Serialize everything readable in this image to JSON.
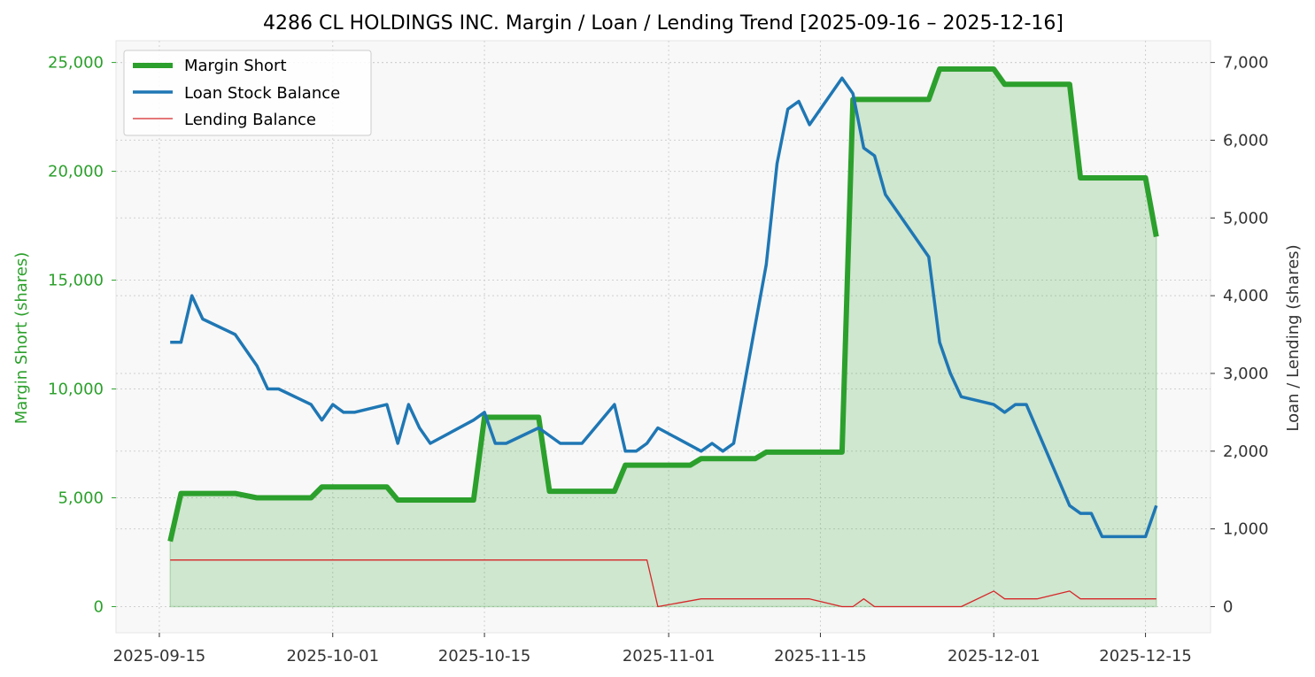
{
  "colors": {
    "margin": "#2ca02c",
    "loan": "#1f77b4",
    "lending": "#d62728",
    "fill": "#2ca02c",
    "plot_bg": "#f8f8f8",
    "grid": "#d0d0d0",
    "text": "#000000",
    "axis_text": "#333333"
  },
  "chart_data": {
    "type": "line",
    "title": "4286 CL HOLDINGS INC. Margin / Loan / Lending Trend [2025-09-16 – 2025-12-16]",
    "ylabel_left": "Margin Short (shares)",
    "ylabel_right": "Loan / Lending (shares)",
    "ylim_left": [
      -1200,
      26000
    ],
    "ylim_right": [
      -336,
      7280
    ],
    "xlim": [
      "2025-09-11",
      "2025-12-21"
    ],
    "yticks_left": [
      {
        "v": 0,
        "label": "0"
      },
      {
        "v": 5000,
        "label": "5,000"
      },
      {
        "v": 10000,
        "label": "10,000"
      },
      {
        "v": 15000,
        "label": "15,000"
      },
      {
        "v": 20000,
        "label": "20,000"
      },
      {
        "v": 25000,
        "label": "25,000"
      }
    ],
    "yticks_right": [
      {
        "v": 0,
        "label": "0"
      },
      {
        "v": 1000,
        "label": "1,000"
      },
      {
        "v": 2000,
        "label": "2,000"
      },
      {
        "v": 3000,
        "label": "3,000"
      },
      {
        "v": 4000,
        "label": "4,000"
      },
      {
        "v": 5000,
        "label": "5,000"
      },
      {
        "v": 6000,
        "label": "6,000"
      },
      {
        "v": 7000,
        "label": "7,000"
      }
    ],
    "xticks": [
      {
        "date": "2025-09-15",
        "label": "2025-09-15"
      },
      {
        "date": "2025-10-01",
        "label": "2025-10-01"
      },
      {
        "date": "2025-10-15",
        "label": "2025-10-15"
      },
      {
        "date": "2025-11-01",
        "label": "2025-11-01"
      },
      {
        "date": "2025-11-15",
        "label": "2025-11-15"
      },
      {
        "date": "2025-12-01",
        "label": "2025-12-01"
      },
      {
        "date": "2025-12-15",
        "label": "2025-12-15"
      }
    ],
    "grid": true,
    "legend_position": "top-left",
    "series": [
      {
        "name": "Margin Short",
        "axis": "left",
        "fill": true,
        "points": [
          [
            "2025-09-16",
            3000
          ],
          [
            "2025-09-17",
            5200
          ],
          [
            "2025-09-18",
            5200
          ],
          [
            "2025-09-22",
            5200
          ],
          [
            "2025-09-24",
            5000
          ],
          [
            "2025-09-29",
            5000
          ],
          [
            "2025-09-30",
            5500
          ],
          [
            "2025-10-06",
            5500
          ],
          [
            "2025-10-07",
            4900
          ],
          [
            "2025-10-14",
            4900
          ],
          [
            "2025-10-15",
            8700
          ],
          [
            "2025-10-20",
            8700
          ],
          [
            "2025-10-21",
            5300
          ],
          [
            "2025-10-27",
            5300
          ],
          [
            "2025-10-28",
            6500
          ],
          [
            "2025-11-03",
            6500
          ],
          [
            "2025-11-04",
            6800
          ],
          [
            "2025-11-09",
            6800
          ],
          [
            "2025-11-10",
            7100
          ],
          [
            "2025-11-17",
            7100
          ],
          [
            "2025-11-18",
            23300
          ],
          [
            "2025-11-25",
            23300
          ],
          [
            "2025-11-26",
            24700
          ],
          [
            "2025-12-01",
            24700
          ],
          [
            "2025-12-02",
            24000
          ],
          [
            "2025-12-08",
            24000
          ],
          [
            "2025-12-09",
            19700
          ],
          [
            "2025-12-15",
            19700
          ],
          [
            "2025-12-16",
            17000
          ]
        ]
      },
      {
        "name": "Loan Stock Balance",
        "axis": "right",
        "points": [
          [
            "2025-09-16",
            3400
          ],
          [
            "2025-09-17",
            3400
          ],
          [
            "2025-09-18",
            4000
          ],
          [
            "2025-09-19",
            3700
          ],
          [
            "2025-09-22",
            3500
          ],
          [
            "2025-09-24",
            3100
          ],
          [
            "2025-09-25",
            2800
          ],
          [
            "2025-09-26",
            2800
          ],
          [
            "2025-09-29",
            2600
          ],
          [
            "2025-09-30",
            2400
          ],
          [
            "2025-10-01",
            2600
          ],
          [
            "2025-10-02",
            2500
          ],
          [
            "2025-10-03",
            2500
          ],
          [
            "2025-10-06",
            2600
          ],
          [
            "2025-10-07",
            2100
          ],
          [
            "2025-10-08",
            2600
          ],
          [
            "2025-10-09",
            2300
          ],
          [
            "2025-10-10",
            2100
          ],
          [
            "2025-10-14",
            2400
          ],
          [
            "2025-10-15",
            2500
          ],
          [
            "2025-10-16",
            2100
          ],
          [
            "2025-10-17",
            2100
          ],
          [
            "2025-10-20",
            2300
          ],
          [
            "2025-10-22",
            2100
          ],
          [
            "2025-10-24",
            2100
          ],
          [
            "2025-10-27",
            2600
          ],
          [
            "2025-10-28",
            2000
          ],
          [
            "2025-10-29",
            2000
          ],
          [
            "2025-10-30",
            2100
          ],
          [
            "2025-10-31",
            2300
          ],
          [
            "2025-11-04",
            2000
          ],
          [
            "2025-11-05",
            2100
          ],
          [
            "2025-11-06",
            2000
          ],
          [
            "2025-11-07",
            2100
          ],
          [
            "2025-11-10",
            4400
          ],
          [
            "2025-11-11",
            5700
          ],
          [
            "2025-11-12",
            6400
          ],
          [
            "2025-11-13",
            6500
          ],
          [
            "2025-11-14",
            6200
          ],
          [
            "2025-11-17",
            6800
          ],
          [
            "2025-11-18",
            6600
          ],
          [
            "2025-11-19",
            5900
          ],
          [
            "2025-11-20",
            5800
          ],
          [
            "2025-11-21",
            5300
          ],
          [
            "2025-11-25",
            4500
          ],
          [
            "2025-11-26",
            3400
          ],
          [
            "2025-11-27",
            3000
          ],
          [
            "2025-11-28",
            2700
          ],
          [
            "2025-12-01",
            2600
          ],
          [
            "2025-12-02",
            2500
          ],
          [
            "2025-12-03",
            2600
          ],
          [
            "2025-12-04",
            2600
          ],
          [
            "2025-12-08",
            1300
          ],
          [
            "2025-12-09",
            1200
          ],
          [
            "2025-12-10",
            1200
          ],
          [
            "2025-12-11",
            900
          ],
          [
            "2025-12-15",
            900
          ],
          [
            "2025-12-16",
            1300
          ]
        ]
      },
      {
        "name": "Lending Balance",
        "axis": "right",
        "points": [
          [
            "2025-09-16",
            600
          ],
          [
            "2025-10-30",
            600
          ],
          [
            "2025-10-31",
            0
          ],
          [
            "2025-11-04",
            100
          ],
          [
            "2025-11-14",
            100
          ],
          [
            "2025-11-17",
            0
          ],
          [
            "2025-11-18",
            0
          ],
          [
            "2025-11-19",
            100
          ],
          [
            "2025-11-20",
            0
          ],
          [
            "2025-11-28",
            0
          ],
          [
            "2025-12-01",
            200
          ],
          [
            "2025-12-02",
            100
          ],
          [
            "2025-12-05",
            100
          ],
          [
            "2025-12-08",
            200
          ],
          [
            "2025-12-09",
            100
          ],
          [
            "2025-12-16",
            100
          ]
        ]
      }
    ]
  }
}
